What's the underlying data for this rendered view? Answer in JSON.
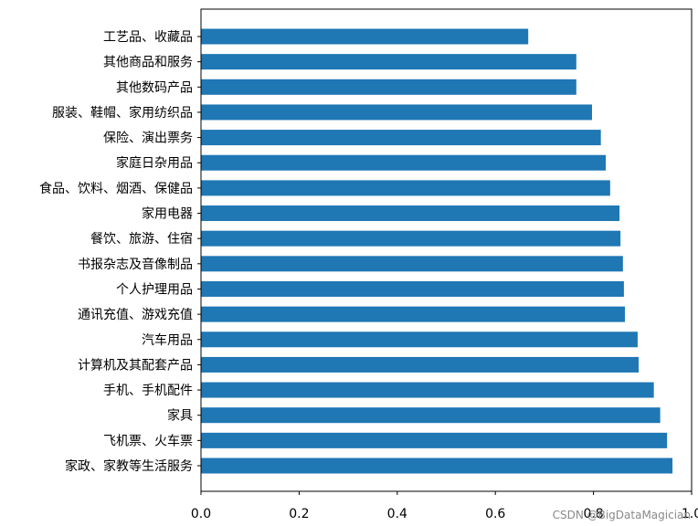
{
  "chart_data": {
    "type": "bar",
    "orientation": "horizontal",
    "categories": [
      "工艺品、收藏品",
      "其他商品和服务",
      "其他数码产品",
      "服装、鞋帽、家用纺织品",
      "保险、演出票务",
      "家庭日杂用品",
      "食品、饮料、烟酒、保健品",
      "家用电器",
      "餐饮、旅游、住宿",
      "书报杂志及音像制品",
      "个人护理用品",
      "通讯充值、游戏充值",
      "汽车用品",
      "计算机及其配套产品",
      "手机、手机配件",
      "家具",
      "飞机票、火车票",
      "家政、家教等生活服务"
    ],
    "values": [
      0.667,
      0.765,
      0.765,
      0.797,
      0.815,
      0.825,
      0.834,
      0.853,
      0.855,
      0.86,
      0.862,
      0.864,
      0.89,
      0.892,
      0.923,
      0.936,
      0.95,
      0.961
    ],
    "xlim": [
      0.0,
      1.0
    ],
    "xticks": [
      "0.0",
      "0.2",
      "0.4",
      "0.6",
      "0.8",
      "1.0"
    ],
    "bar_color": "#1f77b4",
    "grid": false
  },
  "watermark": "CSDN @BigDataMagician"
}
